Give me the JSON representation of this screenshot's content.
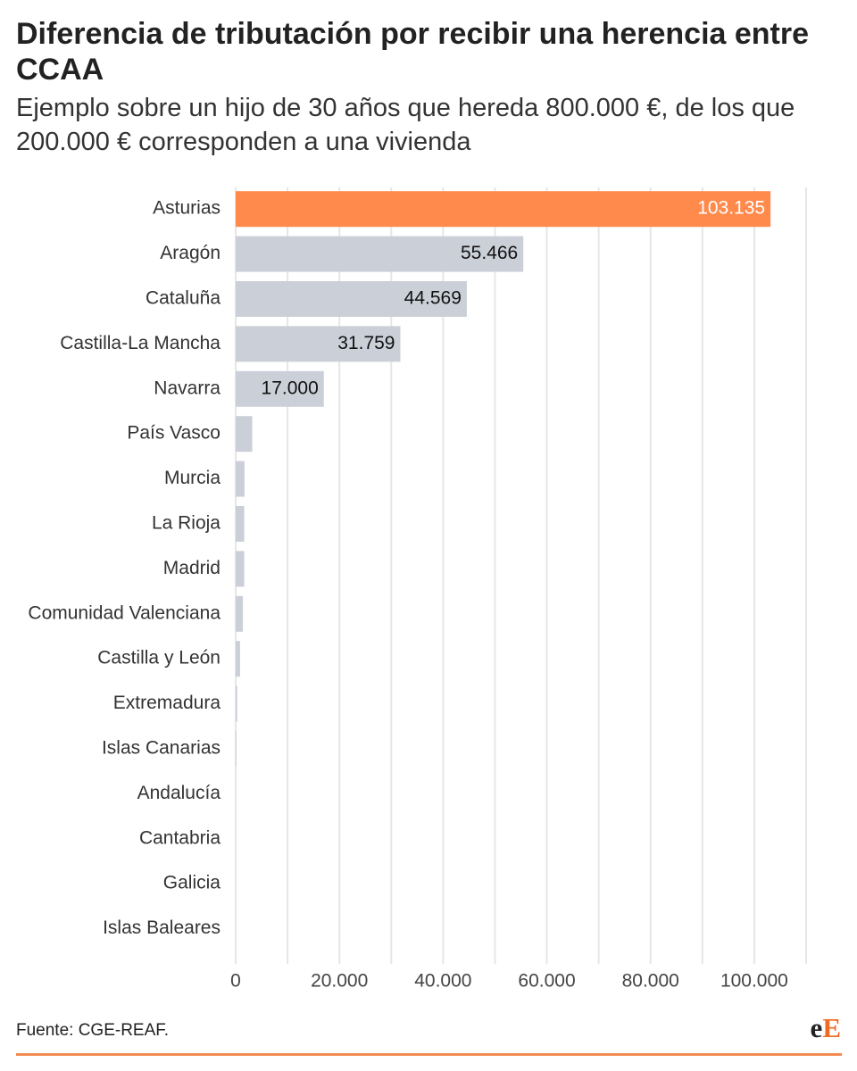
{
  "title": "Diferencia de tributación por recibir una herencia entre CCAA",
  "subtitle": "Ejemplo sobre un hijo de 30 años que hereda 800.000 €, de los que 200.000 € corresponden a una vivienda",
  "source": "Fuente: CGE-REAF.",
  "logo": {
    "part1": "e",
    "part2": "E"
  },
  "colors": {
    "highlight": "#ff8a4c",
    "bar": "#cbd0d8",
    "grid": "#e6e6e6",
    "accent": "#f26a21"
  },
  "chart_data": {
    "type": "bar",
    "orientation": "horizontal",
    "categories": [
      "Asturias",
      "Aragón",
      "Cataluña",
      "Castilla-La Mancha",
      "Navarra",
      "País Vasco",
      "Murcia",
      "La Rioja",
      "Madrid",
      "Comunidad Valenciana",
      "Castilla y León",
      "Extremadura",
      "Islas Canarias",
      "Andalucía",
      "Cantabria",
      "Galicia",
      "Islas Baleares"
    ],
    "values": [
      103135,
      55466,
      44569,
      31759,
      17000,
      3200,
      1700,
      1650,
      1650,
      1400,
      850,
      300,
      150,
      0,
      0,
      0,
      0
    ],
    "data_labels": [
      "103.135",
      "55.466",
      "44.569",
      "31.759",
      "17.000",
      "",
      "",
      "",
      "",
      "",
      "",
      "",
      "",
      "",
      "",
      "",
      ""
    ],
    "highlight_category": "Asturias",
    "xlim": [
      0,
      110000
    ],
    "xticks": [
      0,
      20000,
      40000,
      60000,
      80000,
      100000
    ],
    "xtick_labels": [
      "0",
      "20.000",
      "40.000",
      "60.000",
      "80.000",
      "100.000"
    ],
    "xlabel": "",
    "ylabel": "",
    "grid": "vertical"
  }
}
